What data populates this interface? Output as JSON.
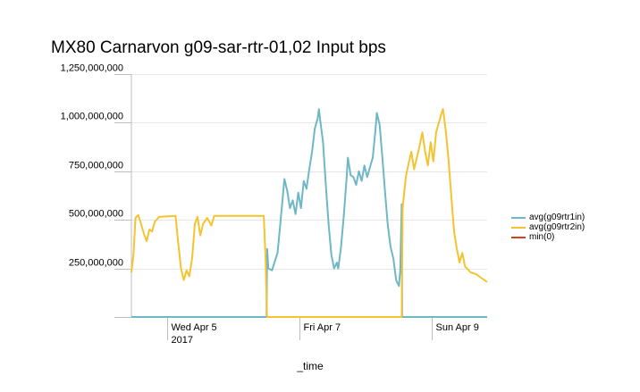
{
  "chart_data": {
    "type": "line",
    "title": "MX80 Carnarvon g09-sar-rtr-01,02 Input bps",
    "xlabel": "_time",
    "ylabel": "",
    "ylim": [
      0,
      1250000000
    ],
    "yticks": [
      {
        "value": 250000000,
        "label": "250,000,000"
      },
      {
        "value": 500000000,
        "label": "500,000,000"
      },
      {
        "value": 750000000,
        "label": "750,000,000"
      },
      {
        "value": 1000000000,
        "label": "1,000,000,000"
      },
      {
        "value": 1250000000,
        "label": "1,250,000,000"
      }
    ],
    "xrange": [
      "2017-04-04 11:00",
      "2017-04-09 20:00"
    ],
    "xticks": [
      {
        "time": "2017-04-05 00:00",
        "label": "Wed Apr 5",
        "sublabel": "2017"
      },
      {
        "time": "2017-04-07 00:00",
        "label": "Fri Apr 7",
        "sublabel": ""
      },
      {
        "time": "2017-04-09 00:00",
        "label": "Sun Apr 9",
        "sublabel": ""
      }
    ],
    "grid": "horizontal",
    "legend_position": "right",
    "series": [
      {
        "name": "avg(g09rtr1in)",
        "color": "#6db7c6",
        "points": [
          [
            "2017-04-04 11:00",
            0
          ],
          [
            "2017-04-06 12:00",
            0
          ],
          [
            "2017-04-06 12:15",
            350000000
          ],
          [
            "2017-04-06 12:40",
            250000000
          ],
          [
            "2017-04-06 14:00",
            240000000
          ],
          [
            "2017-04-06 16:00",
            330000000
          ],
          [
            "2017-04-06 17:00",
            480000000
          ],
          [
            "2017-04-06 18:30",
            710000000
          ],
          [
            "2017-04-06 19:30",
            650000000
          ],
          [
            "2017-04-06 20:30",
            560000000
          ],
          [
            "2017-04-06 21:30",
            600000000
          ],
          [
            "2017-04-06 22:30",
            530000000
          ],
          [
            "2017-04-06 23:30",
            640000000
          ],
          [
            "2017-04-07 00:30",
            560000000
          ],
          [
            "2017-04-07 01:30",
            700000000
          ],
          [
            "2017-04-07 02:30",
            660000000
          ],
          [
            "2017-04-07 03:30",
            760000000
          ],
          [
            "2017-04-07 04:30",
            850000000
          ],
          [
            "2017-04-07 05:30",
            970000000
          ],
          [
            "2017-04-07 06:30",
            1020000000
          ],
          [
            "2017-04-07 07:00",
            1070000000
          ],
          [
            "2017-04-07 07:30",
            1010000000
          ],
          [
            "2017-04-07 08:30",
            900000000
          ],
          [
            "2017-04-07 09:30",
            680000000
          ],
          [
            "2017-04-07 10:30",
            480000000
          ],
          [
            "2017-04-07 11:30",
            320000000
          ],
          [
            "2017-04-07 12:30",
            250000000
          ],
          [
            "2017-04-07 13:30",
            280000000
          ],
          [
            "2017-04-07 14:00",
            250000000
          ],
          [
            "2017-04-07 15:00",
            360000000
          ],
          [
            "2017-04-07 16:00",
            520000000
          ],
          [
            "2017-04-07 17:00",
            710000000
          ],
          [
            "2017-04-07 17:30",
            820000000
          ],
          [
            "2017-04-07 18:30",
            730000000
          ],
          [
            "2017-04-07 19:30",
            720000000
          ],
          [
            "2017-04-07 20:30",
            680000000
          ],
          [
            "2017-04-07 21:30",
            750000000
          ],
          [
            "2017-04-07 22:30",
            700000000
          ],
          [
            "2017-04-07 23:30",
            780000000
          ],
          [
            "2017-04-08 00:30",
            720000000
          ],
          [
            "2017-04-08 01:30",
            770000000
          ],
          [
            "2017-04-08 02:30",
            820000000
          ],
          [
            "2017-04-08 03:30",
            960000000
          ],
          [
            "2017-04-08 04:00",
            1050000000
          ],
          [
            "2017-04-08 05:00",
            990000000
          ],
          [
            "2017-04-08 06:00",
            820000000
          ],
          [
            "2017-04-08 07:00",
            640000000
          ],
          [
            "2017-04-08 08:00",
            470000000
          ],
          [
            "2017-04-08 09:00",
            360000000
          ],
          [
            "2017-04-08 10:00",
            300000000
          ],
          [
            "2017-04-08 11:00",
            190000000
          ],
          [
            "2017-04-08 12:00",
            160000000
          ],
          [
            "2017-04-08 12:30",
            240000000
          ],
          [
            "2017-04-08 13:00",
            580000000
          ],
          [
            "2017-04-08 13:10",
            0
          ],
          [
            "2017-04-09 20:00",
            0
          ]
        ]
      },
      {
        "name": "avg(g09rtr2in)",
        "color": "#f4c430",
        "points": [
          [
            "2017-04-04 11:00",
            230000000
          ],
          [
            "2017-04-04 11:45",
            320000000
          ],
          [
            "2017-04-04 12:30",
            510000000
          ],
          [
            "2017-04-04 13:30",
            525000000
          ],
          [
            "2017-04-04 14:30",
            480000000
          ],
          [
            "2017-04-04 15:30",
            430000000
          ],
          [
            "2017-04-04 16:30",
            390000000
          ],
          [
            "2017-04-04 17:30",
            450000000
          ],
          [
            "2017-04-04 18:30",
            440000000
          ],
          [
            "2017-04-04 19:30",
            490000000
          ],
          [
            "2017-04-04 21:00",
            515000000
          ],
          [
            "2017-04-05 03:00",
            520000000
          ],
          [
            "2017-04-05 04:00",
            380000000
          ],
          [
            "2017-04-05 05:00",
            250000000
          ],
          [
            "2017-04-05 06:00",
            190000000
          ],
          [
            "2017-04-05 07:00",
            240000000
          ],
          [
            "2017-04-05 08:00",
            210000000
          ],
          [
            "2017-04-05 09:00",
            300000000
          ],
          [
            "2017-04-05 10:00",
            480000000
          ],
          [
            "2017-04-05 11:00",
            515000000
          ],
          [
            "2017-04-05 12:00",
            420000000
          ],
          [
            "2017-04-05 13:00",
            480000000
          ],
          [
            "2017-04-05 14:30",
            510000000
          ],
          [
            "2017-04-05 16:00",
            470000000
          ],
          [
            "2017-04-05 17:00",
            520000000
          ],
          [
            "2017-04-06 11:00",
            520000000
          ],
          [
            "2017-04-06 11:40",
            300000000
          ],
          [
            "2017-04-06 12:10",
            0
          ],
          [
            "2017-04-08 13:00",
            0
          ],
          [
            "2017-04-08 13:20",
            560000000
          ],
          [
            "2017-04-08 14:30",
            720000000
          ],
          [
            "2017-04-08 15:30",
            790000000
          ],
          [
            "2017-04-08 16:30",
            850000000
          ],
          [
            "2017-04-08 17:30",
            760000000
          ],
          [
            "2017-04-08 18:30",
            820000000
          ],
          [
            "2017-04-08 19:30",
            880000000
          ],
          [
            "2017-04-08 20:30",
            950000000
          ],
          [
            "2017-04-08 21:30",
            850000000
          ],
          [
            "2017-04-08 22:30",
            780000000
          ],
          [
            "2017-04-08 23:30",
            900000000
          ],
          [
            "2017-04-09 00:30",
            800000000
          ],
          [
            "2017-04-09 01:30",
            950000000
          ],
          [
            "2017-04-09 02:30",
            1000000000
          ],
          [
            "2017-04-09 03:30",
            1050000000
          ],
          [
            "2017-04-09 04:00",
            1070000000
          ],
          [
            "2017-04-09 05:00",
            960000000
          ],
          [
            "2017-04-09 06:00",
            810000000
          ],
          [
            "2017-04-09 07:00",
            620000000
          ],
          [
            "2017-04-09 08:00",
            440000000
          ],
          [
            "2017-04-09 09:00",
            350000000
          ],
          [
            "2017-04-09 10:00",
            280000000
          ],
          [
            "2017-04-09 11:00",
            330000000
          ],
          [
            "2017-04-09 12:00",
            260000000
          ],
          [
            "2017-04-09 14:00",
            230000000
          ],
          [
            "2017-04-09 16:00",
            220000000
          ],
          [
            "2017-04-09 18:00",
            200000000
          ],
          [
            "2017-04-09 20:00",
            180000000
          ]
        ]
      },
      {
        "name": "min(0)",
        "color": "#d9411e",
        "points": []
      }
    ]
  }
}
